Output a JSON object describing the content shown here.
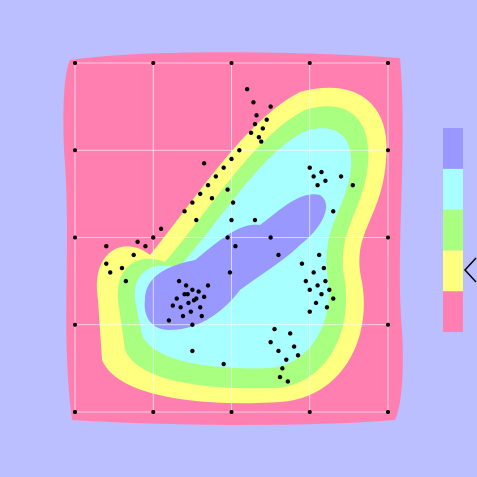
{
  "chart_data": {
    "type": "scatter",
    "background": "#bbbfff",
    "level_colors": [
      "#ff80b0",
      "#ffff80",
      "#a8ff80",
      "#a8ffff",
      "#9898ff"
    ],
    "point_color": "#000000",
    "grid": true,
    "xlim": [
      0,
      4
    ],
    "ylim": [
      0,
      4
    ],
    "xticks": [
      0,
      1,
      2,
      3,
      4
    ],
    "yticks": [
      0,
      1,
      2,
      3,
      4
    ],
    "x": [
      1.3,
      1.35,
      1.4,
      1.45,
      1.5,
      1.55,
      1.6,
      1.38,
      1.42,
      1.48,
      1.52,
      1.58,
      1.25,
      1.65,
      1.7,
      1.2,
      1.33,
      1.5,
      1.62,
      1.44,
      2.95,
      3.0,
      3.05,
      3.1,
      3.15,
      3.2,
      3.25,
      2.9,
      3.08,
      3.18,
      3.3,
      3.0,
      3.12,
      3.22,
      2.25,
      2.3,
      2.35,
      2.4,
      2.45,
      2.32,
      2.38,
      2.28,
      2.5,
      2.2,
      1.4,
      1.5,
      1.6,
      1.7,
      1.8,
      1.9,
      2.0,
      1.75,
      1.65,
      1.55,
      1.95,
      2.1,
      3.0,
      3.05,
      3.1,
      3.15,
      3.2,
      3.4,
      3.55,
      3.3,
      2.5,
      2.6,
      2.7,
      2.8,
      2.65,
      2.75,
      2.55,
      2.85,
      2.62,
      2.72,
      1.5,
      1.9,
      0.4,
      0.45,
      0.6,
      0.75,
      0.9,
      1.0,
      1.1,
      0.8,
      0.4,
      0.65,
      1.95,
      2.0,
      2.05,
      1.98,
      2.02,
      2.3,
      2.5,
      2.6
    ],
    "values": [
      1.3,
      1.2,
      1.35,
      1.25,
      1.4,
      1.3,
      1.2,
      1.1,
      1.45,
      1.15,
      1.28,
      1.38,
      1.22,
      1.32,
      1.45,
      1.05,
      1.5,
      1.0,
      1.1,
      1.35,
      1.5,
      1.4,
      1.6,
      1.45,
      1.35,
      1.5,
      1.4,
      1.7,
      1.25,
      1.65,
      1.3,
      1.15,
      1.8,
      1.2,
      3.2,
      3.3,
      3.15,
      3.25,
      3.35,
      3.4,
      3.1,
      3.55,
      3.5,
      3.7,
      2.3,
      2.4,
      2.5,
      2.6,
      2.7,
      2.8,
      2.9,
      2.45,
      2.85,
      2.2,
      2.55,
      3.0,
      2.8,
      2.7,
      2.6,
      2.75,
      2.65,
      2.7,
      2.6,
      2.3,
      0.8,
      0.7,
      0.6,
      0.75,
      0.5,
      0.9,
      0.95,
      0.65,
      0.4,
      0.35,
      0.7,
      0.55,
      1.7,
      1.6,
      1.65,
      1.8,
      1.9,
      2.0,
      2.1,
      1.95,
      1.9,
      1.5,
      2.0,
      2.2,
      1.9,
      1.6,
      2.4,
      2.2,
      2.0,
      1.8
    ]
  }
}
